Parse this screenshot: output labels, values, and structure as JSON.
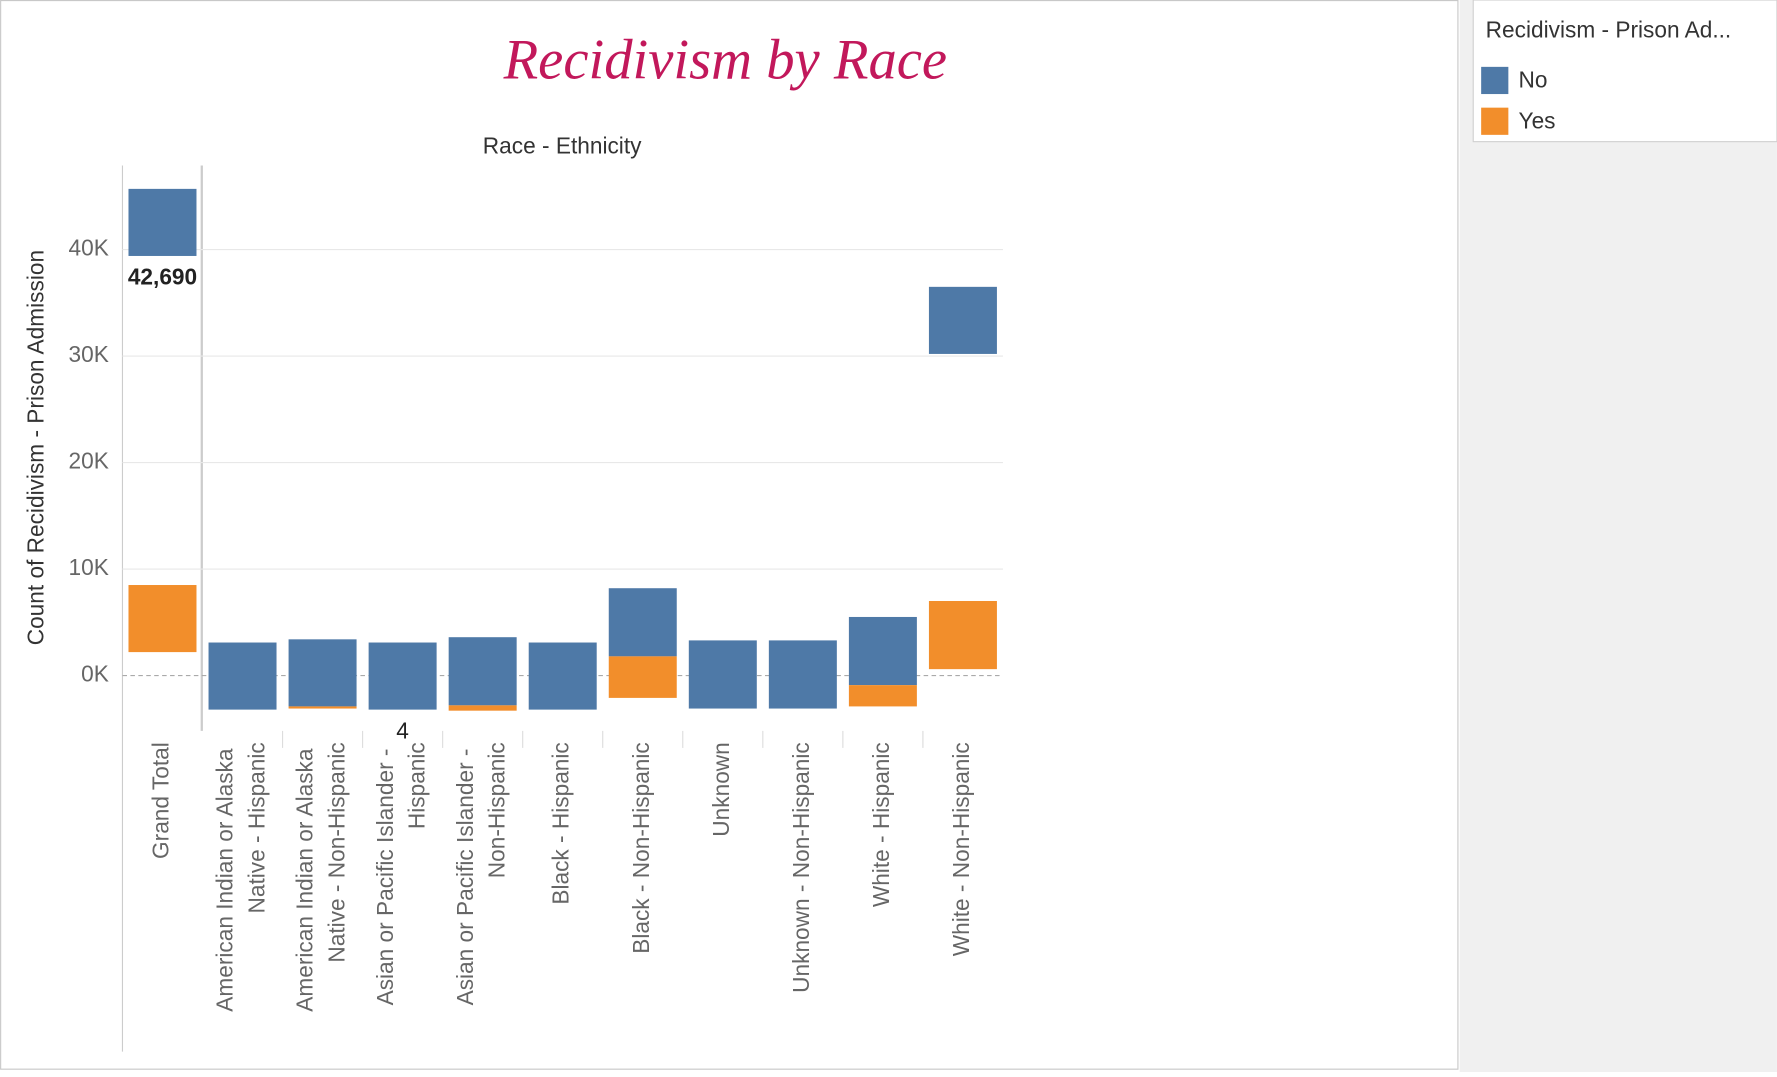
{
  "chart_data": {
    "type": "floating-bar",
    "title": "Recidivism by Race",
    "x_label": "Race - Ethnicity",
    "y_label": "Count of Recidivism - Prison Admission",
    "categories": [
      "Grand Total",
      "American Indian or Alaska Native - Hispanic",
      "American Indian or Alaska Native - Non-Hispanic",
      "Asian or Pacific Islander - Hispanic",
      "Asian or Pacific Islander - Non-Hispanic",
      "Black - Hispanic",
      "Black - Non-Hispanic",
      "Unknown",
      "Unknown - Non-Hispanic",
      "White - Hispanic",
      "White - Non-Hispanic"
    ],
    "series": [
      {
        "name": "No",
        "color": "#4e79a7",
        "values": [
          [
            39400,
            45700
          ],
          [
            -3200,
            3100
          ],
          [
            -2900,
            3400
          ],
          [
            -3200,
            3100
          ],
          [
            -2800,
            3600
          ],
          [
            -3200,
            3100
          ],
          [
            1800,
            8200
          ],
          [
            -3100,
            3300
          ],
          [
            -3100,
            3300
          ],
          [
            -900,
            5500
          ],
          [
            30200,
            36500
          ]
        ]
      },
      {
        "name": "Yes",
        "color": "#f28e2b",
        "values": [
          [
            2200,
            8500
          ],
          null,
          [
            -3100,
            -2900
          ],
          null,
          [
            -3300,
            -2800
          ],
          null,
          [
            -2100,
            1800
          ],
          null,
          null,
          [
            -2900,
            -900
          ],
          [
            600,
            7000
          ]
        ]
      }
    ],
    "annotations": [
      {
        "category": 0,
        "text": "42,690"
      },
      {
        "category": 3,
        "text": "4"
      }
    ],
    "ylim": [
      -5200,
      47900
    ],
    "yticks": [
      {
        "value": 0,
        "label": "0K"
      },
      {
        "value": 10000,
        "label": "10K"
      },
      {
        "value": 20000,
        "label": "20K"
      },
      {
        "value": 30000,
        "label": "30K"
      },
      {
        "value": 40000,
        "label": "40K"
      }
    ],
    "grid": true,
    "legend_title": "Recidivism - Prison Ad..."
  }
}
